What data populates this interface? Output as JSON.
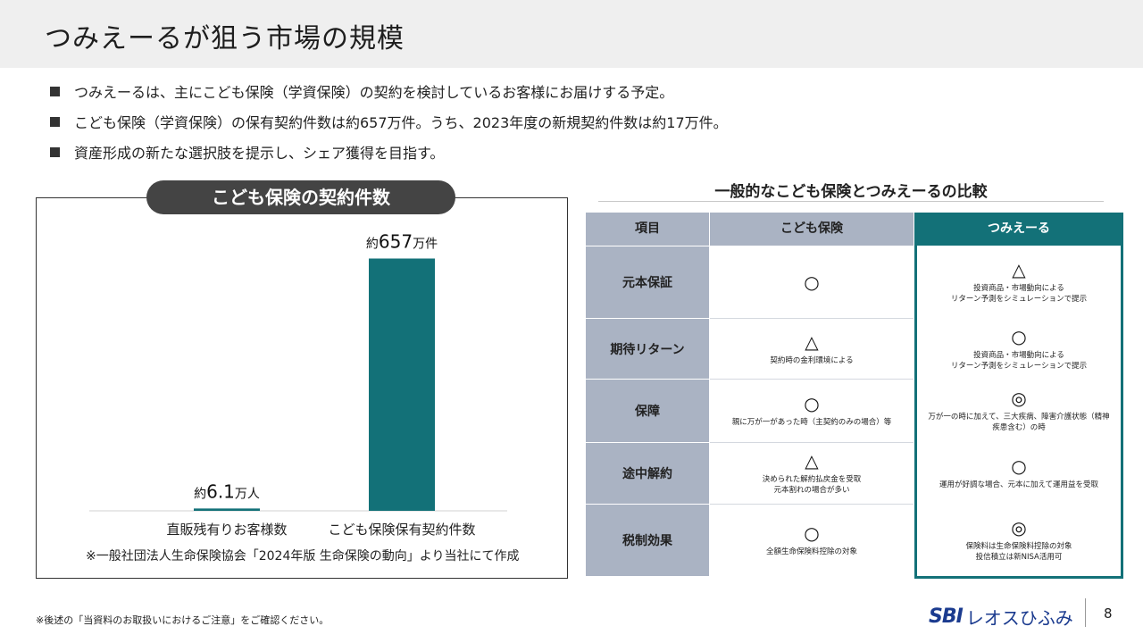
{
  "title": "つみえーるが狙う市場の規模",
  "bullets": [
    "つみえーるは、主にこども保険（学資保険）の契約を検討しているお客様にお届けする予定。",
    "こども保険（学資保険）の保有契約件数は約657万件。うち、2023年度の新規契約件数は約17万件。",
    "資産形成の新たな選択肢を提示し、シェア獲得を目指す。"
  ],
  "chart_title": "こども保険の契約件数",
  "chart_data": {
    "type": "bar",
    "title": "こども保険の契約件数",
    "categories": [
      "直販残有りお客様数",
      "こども保険保有契約件数"
    ],
    "values": [
      6.1,
      657
    ],
    "unit": "万",
    "data_labels": [
      {
        "prefix": "約",
        "number": "6.1",
        "suffix": "万人"
      },
      {
        "prefix": "約",
        "number": "657",
        "suffix": "万件"
      }
    ],
    "ylim": [
      0,
      700
    ],
    "color": "#137178"
  },
  "source_note": "※一般社団法人生命保険協会「2024年版  生命保険の動向」より当社にて作成",
  "comparison": {
    "title": "一般的なこども保険とつみえーるの比較",
    "headers": {
      "item": "項目",
      "kodomo": "こども保険",
      "tsumi": "つみえーる"
    },
    "rows": [
      {
        "label": "元本保証",
        "kodomo": {
          "symbol": "○",
          "note": ""
        },
        "tsumi": {
          "symbol": "△",
          "note": "投資商品・市場動向による\nリターン予測をシミュレーションで提示"
        }
      },
      {
        "label": "期待リターン",
        "kodomo": {
          "symbol": "△",
          "note": "契約時の金利環境による"
        },
        "tsumi": {
          "symbol": "○",
          "note": "投資商品・市場動向による\nリターン予測をシミュレーションで提示"
        }
      },
      {
        "label": "保障",
        "kodomo": {
          "symbol": "○",
          "note": "親に万が一があった時（主契約のみの場合）等"
        },
        "tsumi": {
          "symbol": "◎",
          "note": "万が一の時に加えて、三大疾病、障害介護状態（精神\n疾患含む）の時"
        }
      },
      {
        "label": "途中解約",
        "kodomo": {
          "symbol": "△",
          "note": "決められた解約払戻金を受取\n元本割れの場合が多い"
        },
        "tsumi": {
          "symbol": "○",
          "note": "運用が好調な場合、元本に加えて運用益を受取"
        }
      },
      {
        "label": "税制効果",
        "kodomo": {
          "symbol": "○",
          "note": "全額生命保険料控除の対象"
        },
        "tsumi": {
          "symbol": "◎",
          "note": "保険料は生命保険料控除の対象\n投信積立は新NISA活用可"
        }
      }
    ]
  },
  "footer_note": "※後述の「当資料のお取扱いにおけるご注意」をご確認ください。",
  "logo": {
    "sbi": "SBI",
    "name": "レオスひふみ"
  },
  "page_number": "8",
  "colors": {
    "accent": "#137178",
    "header_gray": "#aab3c3",
    "pill": "#444444"
  }
}
